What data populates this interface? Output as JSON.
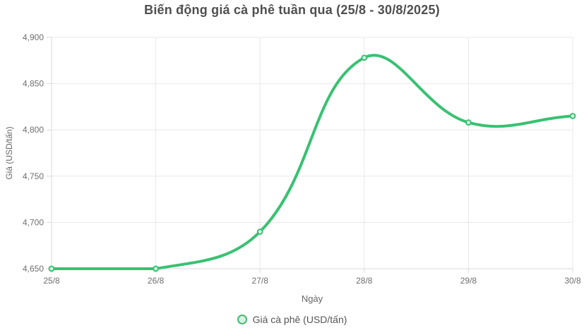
{
  "title": "Biến động giá cà phê tuần qua (25/8 - 30/8/2025)",
  "chart_data": {
    "type": "line",
    "title": "Biến động giá cà phê tuần qua (25/8 - 30/8/2025)",
    "categories": [
      "25/8",
      "26/8",
      "27/8",
      "28/8",
      "29/8",
      "30/8"
    ],
    "series": [
      {
        "name": "Giá cà phê (USD/tấn)",
        "values": [
          4650,
          4650,
          4690,
          4878,
          4808,
          4815
        ]
      }
    ],
    "xlabel": "Ngày",
    "ylabel": "Giá (USD/tấn)",
    "y_ticks": [
      4650,
      4700,
      4750,
      4800,
      4850,
      4900
    ],
    "ylim": [
      4650,
      4900
    ],
    "grid": true,
    "curve": "smooth",
    "legend_position": "bottom",
    "colors": {
      "line": "#38c172",
      "marker_fill": "#d6f3e2",
      "grid_line": "#e8e8e8",
      "axis_line": "#d9d9d9",
      "tick_label": "#6e6e6e",
      "title_text": "#4f4f4f"
    }
  },
  "legend": {
    "label": "Giá cà phê (USD/tấn)"
  }
}
